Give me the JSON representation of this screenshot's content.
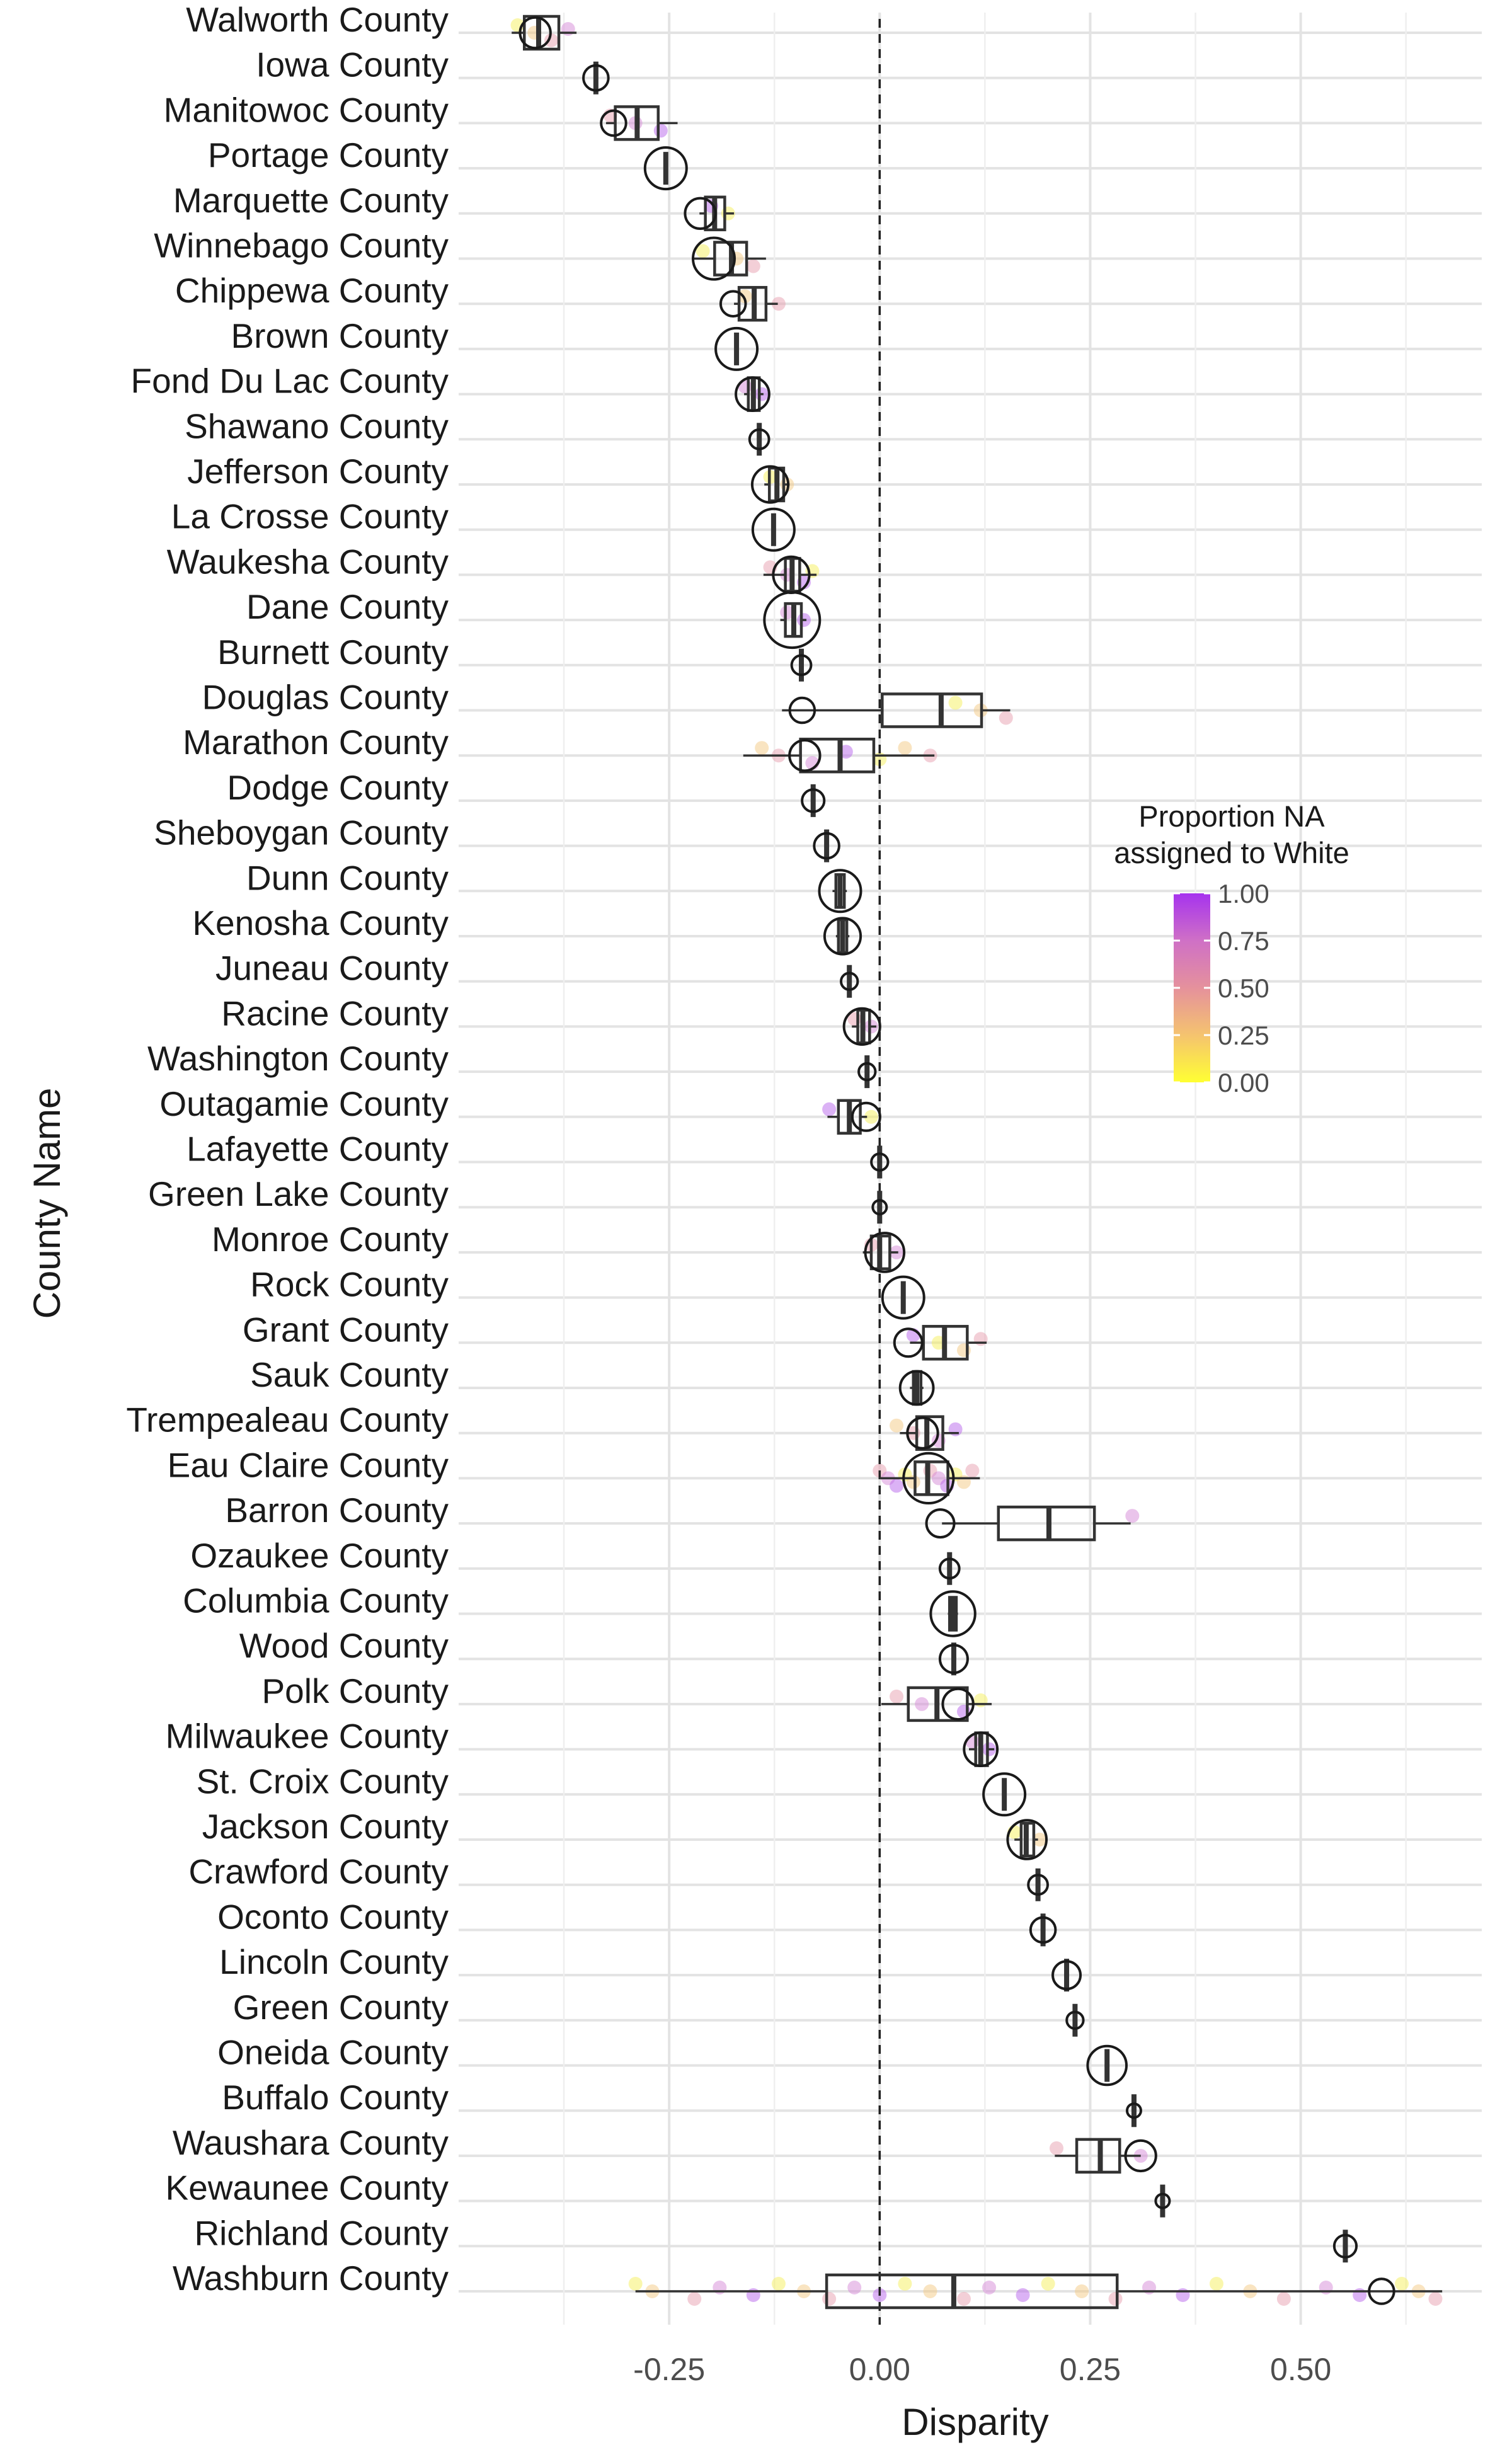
{
  "chart_data": {
    "type": "box",
    "orientation": "horizontal",
    "xlabel": "Disparity",
    "ylabel": "County Name",
    "xlim": [
      -0.5,
      0.715
    ],
    "x_ticks": [
      -0.25,
      0.0,
      0.25,
      0.5
    ],
    "x_tick_labels": [
      "-0.25",
      "0.00",
      "0.25",
      "0.50"
    ],
    "reference_line": 0.0,
    "grid": true,
    "legend": {
      "title_lines": [
        "Proportion NA",
        "assigned to White"
      ],
      "position": "right",
      "type": "colorbar",
      "range": [
        0,
        1
      ],
      "ticks": [
        "1.00",
        "0.75",
        "0.50",
        "0.25",
        "0.00"
      ],
      "colors": [
        "#ffff33",
        "#f5c36f",
        "#e5919c",
        "#cf70c6",
        "#a633ee"
      ]
    },
    "point_colors": [
      "#f5ef5c",
      "#f3c984",
      "#e8a0b0",
      "#d68ad8",
      "#b866ec"
    ],
    "counties": [
      {
        "name": "Walworth County",
        "q1": -0.422,
        "median": -0.405,
        "q3": -0.381,
        "wlo": -0.437,
        "whi": -0.36,
        "marker": -0.409,
        "size": 11,
        "jitter": [
          -0.43,
          -0.41,
          -0.39,
          -0.37
        ]
      },
      {
        "name": "Iowa County",
        "q1": -0.337,
        "median": -0.337,
        "q3": -0.337,
        "wlo": -0.337,
        "whi": -0.337,
        "marker": -0.337,
        "size": 9,
        "jitter": []
      },
      {
        "name": "Manitowoc County",
        "q1": -0.314,
        "median": -0.288,
        "q3": -0.263,
        "wlo": -0.325,
        "whi": -0.24,
        "marker": -0.316,
        "size": 9,
        "jitter": [
          -0.32,
          -0.29,
          -0.26
        ]
      },
      {
        "name": "Portage County",
        "q1": -0.254,
        "median": -0.254,
        "q3": -0.254,
        "wlo": -0.254,
        "whi": -0.254,
        "marker": -0.254,
        "size": 15,
        "jitter": []
      },
      {
        "name": "Marquette County",
        "q1": -0.207,
        "median": -0.196,
        "q3": -0.184,
        "wlo": -0.214,
        "whi": -0.173,
        "marker": -0.213,
        "size": 11,
        "jitter": [
          -0.2,
          -0.18
        ]
      },
      {
        "name": "Winnebago County",
        "q1": -0.196,
        "median": -0.176,
        "q3": -0.158,
        "wlo": -0.222,
        "whi": -0.135,
        "marker": -0.197,
        "size": 15,
        "jitter": [
          -0.21,
          -0.17,
          -0.15
        ]
      },
      {
        "name": "Chippewa County",
        "q1": -0.167,
        "median": -0.149,
        "q3": -0.135,
        "wlo": -0.173,
        "whi": -0.121,
        "marker": -0.174,
        "size": 9,
        "jitter": [
          -0.16,
          -0.12
        ]
      },
      {
        "name": "Brown County",
        "q1": -0.17,
        "median": -0.17,
        "q3": -0.17,
        "wlo": -0.17,
        "whi": -0.17,
        "marker": -0.17,
        "size": 15,
        "jitter": []
      },
      {
        "name": "Fond Du Lac County",
        "q1": -0.156,
        "median": -0.15,
        "q3": -0.143,
        "wlo": -0.161,
        "whi": -0.138,
        "marker": -0.151,
        "size": 12,
        "jitter": [
          -0.16,
          -0.14
        ]
      },
      {
        "name": "Shawano County",
        "q1": -0.143,
        "median": -0.143,
        "q3": -0.143,
        "wlo": -0.143,
        "whi": -0.143,
        "marker": -0.143,
        "size": 7,
        "jitter": []
      },
      {
        "name": "Jefferson County",
        "q1": -0.131,
        "median": -0.122,
        "q3": -0.114,
        "wlo": -0.137,
        "whi": -0.107,
        "marker": -0.13,
        "size": 13,
        "jitter": [
          -0.13,
          -0.11
        ]
      },
      {
        "name": "La Crosse County",
        "q1": -0.126,
        "median": -0.126,
        "q3": -0.126,
        "wlo": -0.126,
        "whi": -0.126,
        "marker": -0.126,
        "size": 15,
        "jitter": []
      },
      {
        "name": "Waukesha County",
        "q1": -0.112,
        "median": -0.104,
        "q3": -0.095,
        "wlo": -0.138,
        "whi": -0.075,
        "marker": -0.105,
        "size": 13,
        "jitter": [
          -0.13,
          -0.11,
          -0.09,
          -0.08
        ]
      },
      {
        "name": "Dane County",
        "q1": -0.112,
        "median": -0.102,
        "q3": -0.093,
        "wlo": -0.118,
        "whi": -0.087,
        "marker": -0.104,
        "size": 20,
        "jitter": [
          -0.11,
          -0.09
        ]
      },
      {
        "name": "Burnett County",
        "q1": -0.093,
        "median": -0.093,
        "q3": -0.093,
        "wlo": -0.093,
        "whi": -0.093,
        "marker": -0.093,
        "size": 7,
        "jitter": []
      },
      {
        "name": "Douglas County",
        "q1": 0.003,
        "median": 0.073,
        "q3": 0.121,
        "wlo": -0.116,
        "whi": 0.155,
        "marker": -0.092,
        "size": 9,
        "jitter": [
          0.09,
          0.12,
          0.15
        ]
      },
      {
        "name": "Marathon County",
        "q1": -0.094,
        "median": -0.047,
        "q3": -0.007,
        "wlo": -0.162,
        "whi": 0.065,
        "marker": -0.089,
        "size": 11,
        "jitter": [
          -0.14,
          -0.12,
          -0.08,
          -0.04,
          0.0,
          0.03,
          0.06
        ]
      },
      {
        "name": "Dodge County",
        "q1": -0.079,
        "median": -0.079,
        "q3": -0.079,
        "wlo": -0.079,
        "whi": -0.079,
        "marker": -0.079,
        "size": 8,
        "jitter": []
      },
      {
        "name": "Sheboygan County",
        "q1": -0.063,
        "median": -0.063,
        "q3": -0.063,
        "wlo": -0.063,
        "whi": -0.063,
        "marker": -0.063,
        "size": 9,
        "jitter": []
      },
      {
        "name": "Dunn County",
        "q1": -0.052,
        "median": -0.047,
        "q3": -0.042,
        "wlo": -0.056,
        "whi": -0.039,
        "marker": -0.047,
        "size": 15,
        "jitter": []
      },
      {
        "name": "Kenosha County",
        "q1": -0.049,
        "median": -0.044,
        "q3": -0.039,
        "wlo": -0.052,
        "whi": -0.036,
        "marker": -0.044,
        "size": 13,
        "jitter": []
      },
      {
        "name": "Juneau County",
        "q1": -0.036,
        "median": -0.036,
        "q3": -0.036,
        "wlo": -0.036,
        "whi": -0.036,
        "marker": -0.036,
        "size": 6,
        "jitter": []
      },
      {
        "name": "Racine County",
        "q1": -0.026,
        "median": -0.02,
        "q3": -0.012,
        "wlo": -0.033,
        "whi": -0.004,
        "marker": -0.021,
        "size": 13,
        "jitter": [
          -0.03,
          -0.01
        ]
      },
      {
        "name": "Washington County",
        "q1": -0.015,
        "median": -0.015,
        "q3": -0.015,
        "wlo": -0.015,
        "whi": -0.015,
        "marker": -0.015,
        "size": 6,
        "jitter": []
      },
      {
        "name": "Outagamie County",
        "q1": -0.049,
        "median": -0.036,
        "q3": -0.023,
        "wlo": -0.062,
        "whi": -0.015,
        "marker": -0.016,
        "size": 10,
        "jitter": [
          -0.06,
          -0.01
        ]
      },
      {
        "name": "Lafayette County",
        "q1": 0.0,
        "median": 0.0,
        "q3": 0.0,
        "wlo": 0.0,
        "whi": 0.0,
        "marker": 0.0,
        "size": 6,
        "jitter": []
      },
      {
        "name": "Green Lake County",
        "q1": 0.0,
        "median": 0.0,
        "q3": 0.0,
        "wlo": 0.0,
        "whi": 0.0,
        "marker": 0.0,
        "size": 5,
        "jitter": []
      },
      {
        "name": "Monroe County",
        "q1": -0.01,
        "median": 0.0,
        "q3": 0.012,
        "wlo": -0.02,
        "whi": 0.022,
        "marker": 0.006,
        "size": 14,
        "jitter": [
          -0.01,
          0.02
        ]
      },
      {
        "name": "Rock County",
        "q1": 0.028,
        "median": 0.028,
        "q3": 0.028,
        "wlo": 0.028,
        "whi": 0.028,
        "marker": 0.028,
        "size": 15,
        "jitter": []
      },
      {
        "name": "Grant County",
        "q1": 0.052,
        "median": 0.077,
        "q3": 0.104,
        "wlo": 0.036,
        "whi": 0.127,
        "marker": 0.034,
        "size": 10,
        "jitter": [
          0.04,
          0.07,
          0.1,
          0.12
        ]
      },
      {
        "name": "Sauk County",
        "q1": 0.04,
        "median": 0.044,
        "q3": 0.049,
        "wlo": 0.036,
        "whi": 0.052,
        "marker": 0.044,
        "size": 12,
        "jitter": []
      },
      {
        "name": "Trempealeau County",
        "q1": 0.044,
        "median": 0.056,
        "q3": 0.075,
        "wlo": 0.024,
        "whi": 0.094,
        "marker": 0.051,
        "size": 11,
        "jitter": [
          0.02,
          0.04,
          0.07,
          0.09
        ]
      },
      {
        "name": "Eau Claire County",
        "q1": 0.042,
        "median": 0.057,
        "q3": 0.081,
        "wlo": 0.0,
        "whi": 0.119,
        "marker": 0.058,
        "size": 18,
        "jitter": [
          0.0,
          0.01,
          0.02,
          0.03,
          0.04,
          0.06,
          0.07,
          0.08,
          0.09,
          0.1,
          0.11
        ]
      },
      {
        "name": "Barron County",
        "q1": 0.141,
        "median": 0.201,
        "q3": 0.255,
        "wlo": 0.074,
        "whi": 0.298,
        "marker": 0.072,
        "size": 10,
        "jitter": [
          0.3
        ]
      },
      {
        "name": "Ozaukee County",
        "q1": 0.083,
        "median": 0.083,
        "q3": 0.083,
        "wlo": 0.083,
        "whi": 0.083,
        "marker": 0.083,
        "size": 7,
        "jitter": []
      },
      {
        "name": "Columbia County",
        "q1": 0.083,
        "median": 0.087,
        "q3": 0.091,
        "wlo": 0.081,
        "whi": 0.093,
        "marker": 0.087,
        "size": 16,
        "jitter": []
      },
      {
        "name": "Wood County",
        "q1": 0.088,
        "median": 0.088,
        "q3": 0.088,
        "wlo": 0.088,
        "whi": 0.088,
        "marker": 0.088,
        "size": 10,
        "jitter": []
      },
      {
        "name": "Polk County",
        "q1": 0.034,
        "median": 0.068,
        "q3": 0.104,
        "wlo": 0.002,
        "whi": 0.133,
        "marker": 0.093,
        "size": 11,
        "jitter": [
          0.02,
          0.05,
          0.1,
          0.12
        ]
      },
      {
        "name": "Milwaukee County",
        "q1": 0.114,
        "median": 0.12,
        "q3": 0.128,
        "wlo": 0.106,
        "whi": 0.136,
        "marker": 0.12,
        "size": 12,
        "jitter": [
          0.11,
          0.13
        ]
      },
      {
        "name": "St. Croix County",
        "q1": 0.148,
        "median": 0.148,
        "q3": 0.148,
        "wlo": 0.148,
        "whi": 0.148,
        "marker": 0.148,
        "size": 15,
        "jitter": []
      },
      {
        "name": "Jackson County",
        "q1": 0.168,
        "median": 0.174,
        "q3": 0.183,
        "wlo": 0.16,
        "whi": 0.188,
        "marker": 0.175,
        "size": 14,
        "jitter": [
          0.16,
          0.19
        ]
      },
      {
        "name": "Crawford County",
        "q1": 0.188,
        "median": 0.188,
        "q3": 0.188,
        "wlo": 0.188,
        "whi": 0.188,
        "marker": 0.188,
        "size": 7,
        "jitter": []
      },
      {
        "name": "Oconto County",
        "q1": 0.194,
        "median": 0.194,
        "q3": 0.194,
        "wlo": 0.194,
        "whi": 0.194,
        "marker": 0.194,
        "size": 9,
        "jitter": []
      },
      {
        "name": "Lincoln County",
        "q1": 0.222,
        "median": 0.222,
        "q3": 0.222,
        "wlo": 0.222,
        "whi": 0.222,
        "marker": 0.222,
        "size": 10,
        "jitter": []
      },
      {
        "name": "Green County",
        "q1": 0.232,
        "median": 0.232,
        "q3": 0.232,
        "wlo": 0.232,
        "whi": 0.232,
        "marker": 0.232,
        "size": 6,
        "jitter": []
      },
      {
        "name": "Oneida County",
        "q1": 0.27,
        "median": 0.27,
        "q3": 0.27,
        "wlo": 0.27,
        "whi": 0.27,
        "marker": 0.27,
        "size": 14,
        "jitter": []
      },
      {
        "name": "Buffalo County",
        "q1": 0.302,
        "median": 0.302,
        "q3": 0.302,
        "wlo": 0.302,
        "whi": 0.302,
        "marker": 0.302,
        "size": 5,
        "jitter": []
      },
      {
        "name": "Waushara County",
        "q1": 0.234,
        "median": 0.262,
        "q3": 0.285,
        "wlo": 0.208,
        "whi": 0.31,
        "marker": 0.31,
        "size": 11,
        "jitter": [
          0.21,
          0.31
        ]
      },
      {
        "name": "Kewaunee County",
        "q1": 0.336,
        "median": 0.336,
        "q3": 0.336,
        "wlo": 0.336,
        "whi": 0.336,
        "marker": 0.336,
        "size": 5,
        "jitter": []
      },
      {
        "name": "Richland County",
        "q1": 0.553,
        "median": 0.553,
        "q3": 0.553,
        "wlo": 0.553,
        "whi": 0.553,
        "marker": 0.553,
        "size": 8,
        "jitter": []
      },
      {
        "name": "Washburn County",
        "q1": -0.063,
        "median": 0.088,
        "q3": 0.282,
        "wlo": -0.29,
        "whi": 0.668,
        "marker": 0.596,
        "size": 9,
        "jitter": [
          -0.29,
          -0.27,
          -0.22,
          -0.19,
          -0.15,
          -0.12,
          -0.09,
          -0.06,
          -0.03,
          0.0,
          0.03,
          0.06,
          0.1,
          0.13,
          0.17,
          0.2,
          0.24,
          0.28,
          0.32,
          0.36,
          0.4,
          0.44,
          0.48,
          0.53,
          0.57,
          0.62,
          0.64,
          0.66
        ]
      }
    ]
  }
}
